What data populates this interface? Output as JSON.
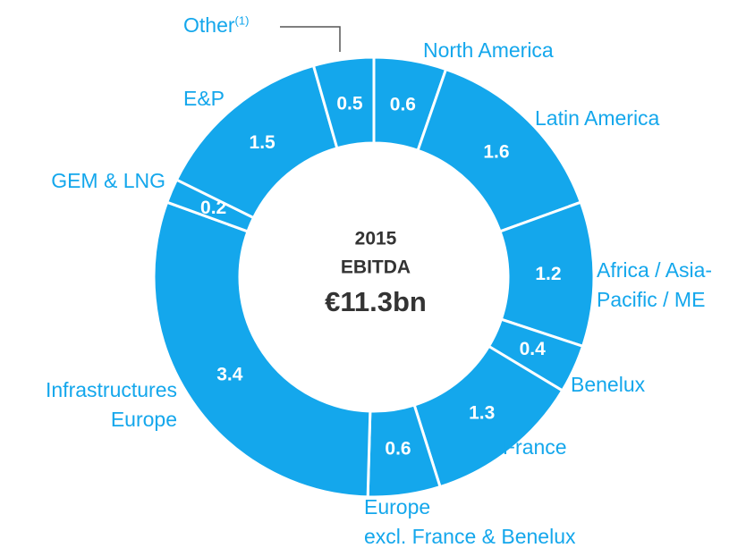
{
  "chart_data": {
    "type": "donut",
    "center_text": [
      "2015",
      "EBITDA",
      "€11.3bn"
    ],
    "categories": [
      "North America",
      "Latin America",
      "Africa / Asia-\nPacific / ME",
      "Benelux",
      "France",
      "Europe\nexcl. France & Benelux",
      "Infrastructures\nEurope",
      "GEM & LNG",
      "E&P",
      "Other"
    ],
    "footnote_marker": "(1)",
    "values": [
      0.6,
      1.6,
      1.2,
      0.4,
      1.3,
      0.6,
      3.4,
      0.2,
      1.5,
      0.5
    ],
    "color": "#14a7ec"
  }
}
